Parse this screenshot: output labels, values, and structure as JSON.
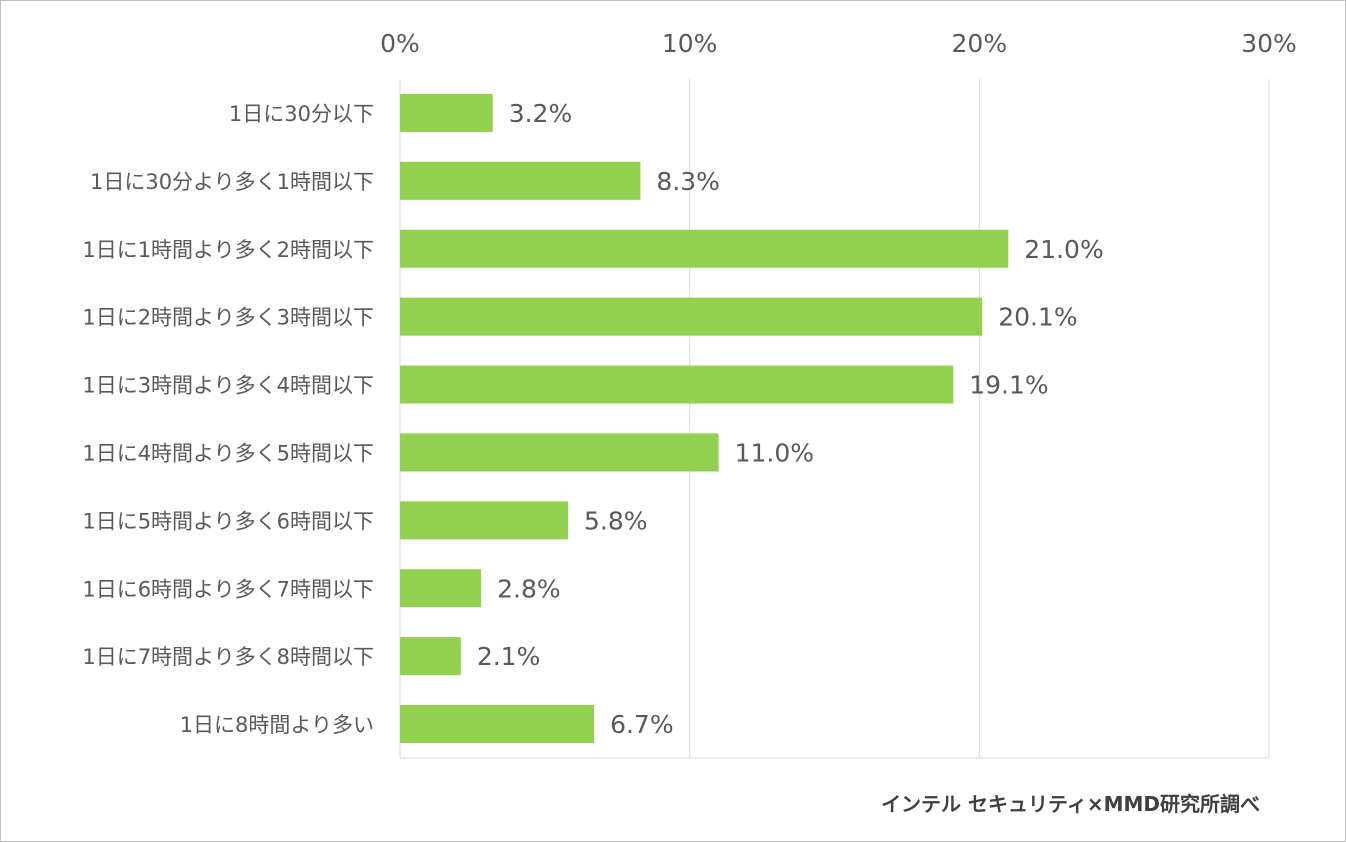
{
  "chart_data": {
    "type": "bar",
    "orientation": "horizontal",
    "categories": [
      "1日に30分以下",
      "1日に30分より多く1時間以下",
      "1日に1時間より多く2時間以下",
      "1日に2時間より多く3時間以下",
      "1日に3時間より多く4時間以下",
      "1日に4時間より多く5時間以下",
      "1日に5時間より多く6時間以下",
      "1日に6時間より多く7時間以下",
      "1日に7時間より多く8時間以下",
      "1日に8時間より多い"
    ],
    "values": [
      3.2,
      8.3,
      21.0,
      20.1,
      19.1,
      11.0,
      5.8,
      2.8,
      2.1,
      6.7
    ],
    "value_labels": [
      "3.2%",
      "8.3%",
      "21.0%",
      "20.1%",
      "19.1%",
      "11.0%",
      "5.8%",
      "2.8%",
      "2.1%",
      "6.7%"
    ],
    "xlim": [
      0,
      30
    ],
    "x_ticks": [
      "0%",
      "10%",
      "20%",
      "30%"
    ],
    "axis_position": "top",
    "grid": true,
    "bar_color": "#92d050",
    "grid_color": "#d9d9d9",
    "title": "",
    "xlabel": "",
    "ylabel": ""
  },
  "source_note": "インテル セキュリティ×MMD研究所調べ"
}
